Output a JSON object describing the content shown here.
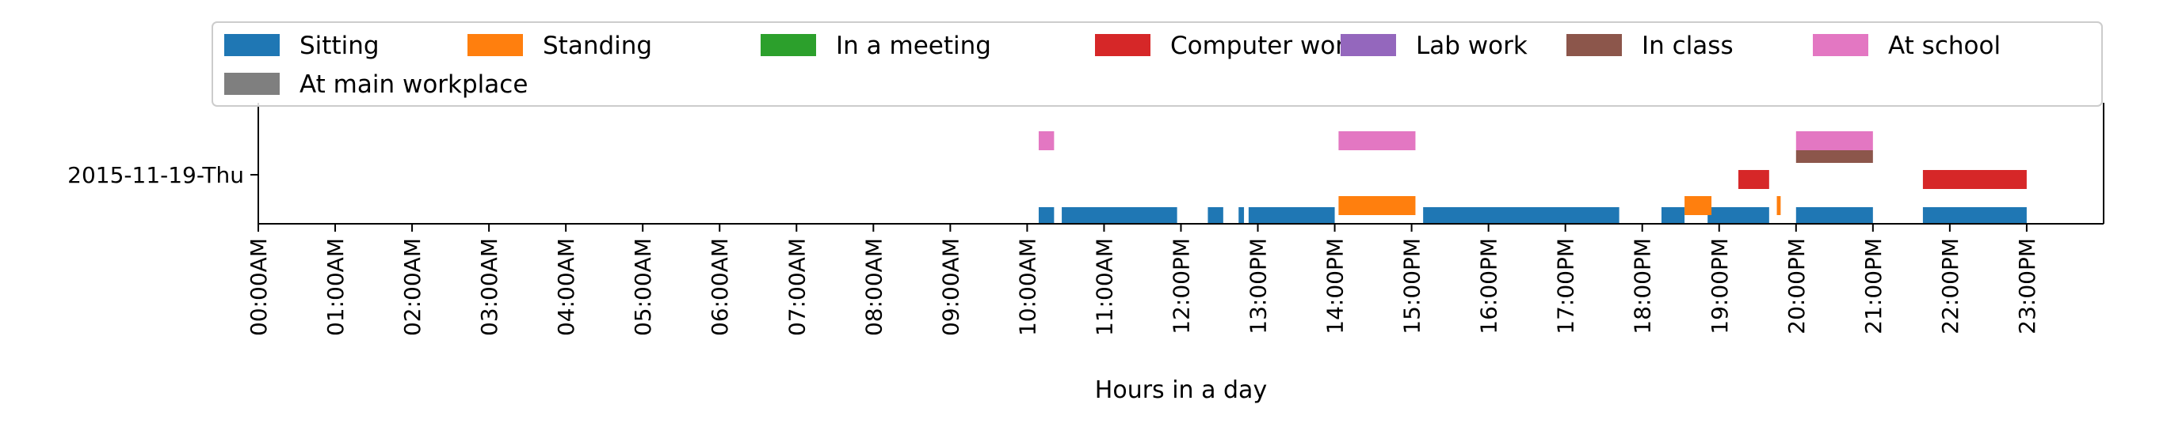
{
  "chart_data": {
    "type": "timeline",
    "xlabel": "Hours in a day",
    "ylabel": "",
    "xlim": [
      0,
      24
    ],
    "y_categories": [
      "2015-11-19-Thu"
    ],
    "x_tick_labels": [
      "00:00AM",
      "01:00AM",
      "02:00AM",
      "03:00AM",
      "04:00AM",
      "05:00AM",
      "06:00AM",
      "07:00AM",
      "08:00AM",
      "09:00AM",
      "10:00AM",
      "11:00AM",
      "12:00PM",
      "13:00PM",
      "14:00PM",
      "15:00PM",
      "16:00PM",
      "17:00PM",
      "18:00PM",
      "19:00PM",
      "20:00PM",
      "21:00PM",
      "22:00PM",
      "23:00PM"
    ],
    "legend_position": "top",
    "series": [
      {
        "name": "Sitting",
        "color": "#1f77b4",
        "intervals": [
          [
            10.15,
            10.35
          ],
          [
            10.45,
            11.95
          ],
          [
            12.35,
            12.55
          ],
          [
            12.75,
            12.82
          ],
          [
            12.88,
            14.0
          ],
          [
            15.15,
            17.7
          ],
          [
            18.25,
            18.55
          ],
          [
            18.85,
            19.65
          ],
          [
            20.0,
            21.0
          ],
          [
            21.65,
            23.0
          ]
        ]
      },
      {
        "name": "Standing",
        "color": "#ff7f0e",
        "intervals": [
          [
            14.05,
            15.05
          ],
          [
            18.55,
            18.9
          ],
          [
            19.75,
            19.8
          ]
        ]
      },
      {
        "name": "In a meeting",
        "color": "#2ca02c",
        "intervals": []
      },
      {
        "name": "Computer work",
        "color": "#d62728",
        "intervals": [
          [
            19.25,
            19.65
          ],
          [
            21.65,
            23.0
          ]
        ]
      },
      {
        "name": "Lab work",
        "color": "#9467bd",
        "intervals": []
      },
      {
        "name": "In class",
        "color": "#8c564b",
        "intervals": [
          [
            20.0,
            21.0
          ]
        ]
      },
      {
        "name": "At school",
        "color": "#e377c2",
        "intervals": [
          [
            10.15,
            10.35
          ],
          [
            14.05,
            15.05
          ],
          [
            20.0,
            21.0
          ]
        ]
      },
      {
        "name": "At main workplace",
        "color": "#7f7f7f",
        "intervals": []
      }
    ]
  }
}
